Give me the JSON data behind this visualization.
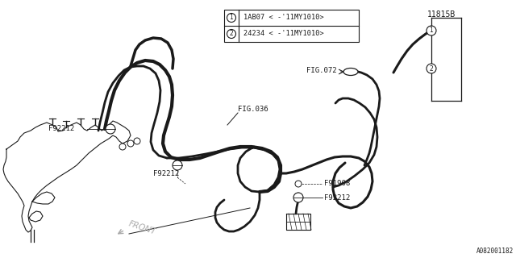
{
  "background_color": "#ffffff",
  "line_color": "#1a1a1a",
  "legend_items": [
    {
      "num": "1",
      "text": "1AB07 < -'11MY1010>"
    },
    {
      "num": "2",
      "text": "24234 < -'11MY1010>"
    }
  ],
  "labels": {
    "F92212": "F92212",
    "F91908": "F91908",
    "FIG036": "FIG.036",
    "FIG072": "FIG.072",
    "part11815B": "11815B",
    "FRONT": "FRONT",
    "diagram_id": "A082001182"
  },
  "figsize": [
    6.4,
    3.2
  ],
  "dpi": 100
}
